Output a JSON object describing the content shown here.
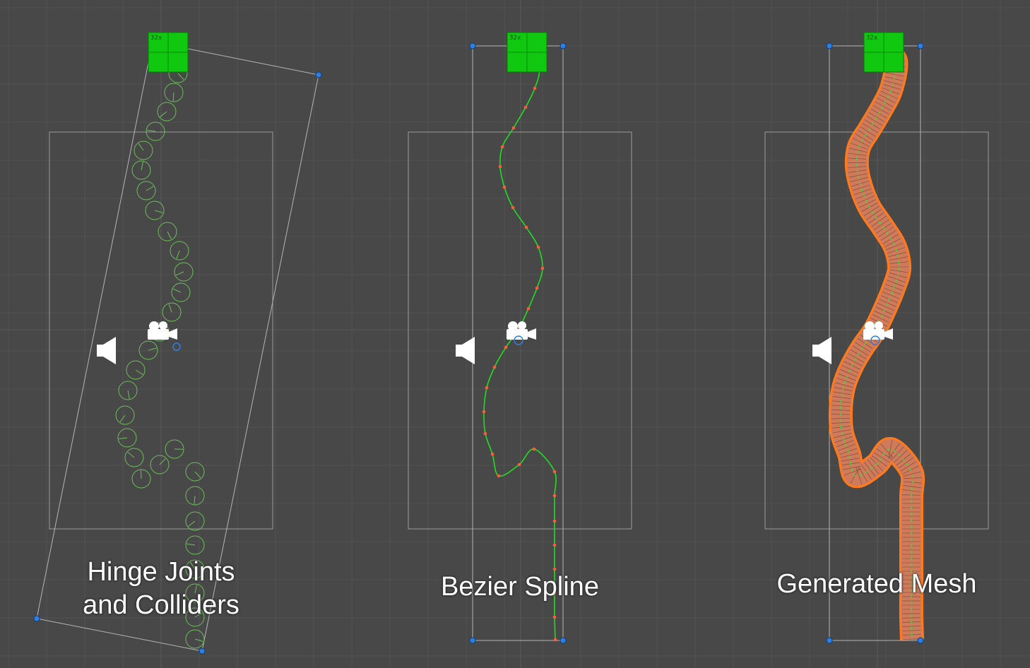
{
  "panels": [
    {
      "caption": "Hinge Joints\nand Colliders",
      "caption_lines": [
        "Hinge Joints",
        "and Colliders"
      ],
      "visualization": "colliders"
    },
    {
      "caption": "Bezier Spline",
      "caption_lines": [
        "Bezier Spline"
      ],
      "visualization": "spline"
    },
    {
      "caption": "Generated Mesh",
      "caption_lines": [
        "Generated Mesh"
      ],
      "visualization": "mesh"
    }
  ],
  "sprite_badge_label": "32x",
  "icons": [
    "speaker-icon",
    "camera-icon",
    "anchor-sprite-icon"
  ],
  "colors": {
    "background": "#484848",
    "grid": "#525252",
    "grid_axis": "#5a5a5a",
    "frame": "#a8a8a8",
    "handle": "#2f7fe0",
    "collider": "#6cbf5a",
    "spline": "#22dd22",
    "spline_point": "#ff5a3c",
    "mesh_fill": "#d77a55",
    "mesh_outline": "#ff7a1a",
    "sprite_green": "#10c810"
  }
}
